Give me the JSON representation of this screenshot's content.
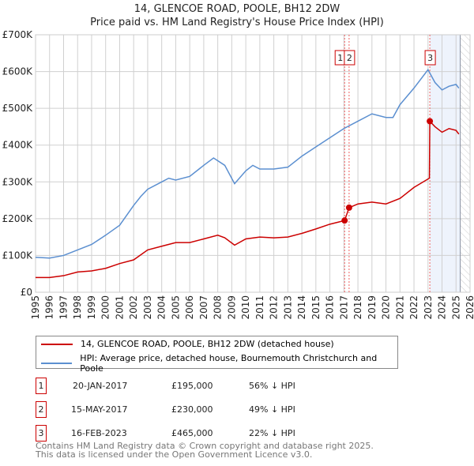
{
  "chart_data": {
    "type": "line",
    "title": "14, GLENCOE ROAD, POOLE, BH12 2DW",
    "subtitle": "Price paid vs. HM Land Registry's House Price Index (HPI)",
    "xlim": [
      1995,
      2026
    ],
    "ylim": [
      0,
      700000
    ],
    "x_ticks": [
      "1995",
      "1996",
      "1997",
      "1998",
      "1999",
      "2000",
      "2001",
      "2002",
      "2003",
      "2004",
      "2005",
      "2006",
      "2007",
      "2008",
      "2009",
      "2010",
      "2011",
      "2012",
      "2013",
      "2014",
      "2015",
      "2016",
      "2017",
      "2018",
      "2019",
      "2020",
      "2021",
      "2022",
      "2023",
      "2024",
      "2025",
      "2026"
    ],
    "y_ticks": [
      {
        "v": 0,
        "label": "£0"
      },
      {
        "v": 100000,
        "label": "£100K"
      },
      {
        "v": 200000,
        "label": "£200K"
      },
      {
        "v": 300000,
        "label": "£300K"
      },
      {
        "v": 400000,
        "label": "£400K"
      },
      {
        "v": 500000,
        "label": "£500K"
      },
      {
        "v": 600000,
        "label": "£600K"
      },
      {
        "v": 700000,
        "label": "£700K"
      }
    ],
    "grid": true,
    "series": [
      {
        "name": "14, GLENCOE ROAD, POOLE, BH12 2DW (detached house)",
        "color": "#cc0000",
        "x": [
          1995,
          1996,
          1997,
          1998,
          1999,
          2000,
          2001,
          2002,
          2003,
          2004,
          2005,
          2006,
          2007,
          2008,
          2008.5,
          2009.2,
          2010,
          2011,
          2012,
          2013,
          2014,
          2015,
          2016,
          2017.05,
          2017.37,
          2018,
          2019,
          2020,
          2021,
          2022,
          2023.1,
          2023.13,
          2023.5,
          2024,
          2024.5,
          2025,
          2025.2
        ],
        "y": [
          40000,
          40000,
          45000,
          55000,
          58000,
          65000,
          78000,
          88000,
          115000,
          125000,
          135000,
          135000,
          145000,
          155000,
          148000,
          128000,
          145000,
          150000,
          148000,
          150000,
          160000,
          172000,
          185000,
          195000,
          230000,
          240000,
          245000,
          240000,
          255000,
          285000,
          310000,
          465000,
          450000,
          435000,
          445000,
          440000,
          430000
        ]
      },
      {
        "name": "HPI: Average price, detached house, Bournemouth Christchurch and Poole",
        "color": "#5b8fd0",
        "x": [
          1995,
          1996,
          1997,
          1998,
          1999,
          2000,
          2001,
          2002,
          2002.5,
          2003,
          2004,
          2004.5,
          2005,
          2006,
          2007,
          2007.7,
          2008.5,
          2009.2,
          2010,
          2010.5,
          2011,
          2012,
          2013,
          2014,
          2015,
          2016,
          2017,
          2018,
          2019,
          2020,
          2020.5,
          2021,
          2022,
          2023,
          2023.5,
          2024,
          2024.5,
          2025,
          2025.2
        ],
        "y": [
          95000,
          93000,
          100000,
          115000,
          130000,
          155000,
          182000,
          236000,
          260000,
          280000,
          300000,
          310000,
          305000,
          315000,
          345000,
          365000,
          345000,
          295000,
          330000,
          345000,
          335000,
          335000,
          340000,
          370000,
          395000,
          420000,
          445000,
          465000,
          485000,
          475000,
          475000,
          510000,
          555000,
          605000,
          570000,
          550000,
          560000,
          565000,
          555000
        ]
      }
    ],
    "transactions": [
      {
        "n": "1",
        "date": "20-JAN-2017",
        "x": 2017.05,
        "price": "£195,000",
        "value": 195000,
        "hpi": "56% ↓ HPI"
      },
      {
        "n": "2",
        "date": "15-MAY-2017",
        "x": 2017.37,
        "price": "£230,000",
        "value": 230000,
        "hpi": "49% ↓ HPI"
      },
      {
        "n": "3",
        "date": "16-FEB-2023",
        "x": 2023.13,
        "price": "£465,000",
        "value": 465000,
        "hpi": "22% ↓ HPI"
      }
    ],
    "shaded_from": 2023.13,
    "hatched_from": 2025.3
  },
  "footer": [
    "Contains HM Land Registry data © Crown copyright and database right 2025.",
    "This data is licensed under the Open Government Licence v3.0."
  ]
}
